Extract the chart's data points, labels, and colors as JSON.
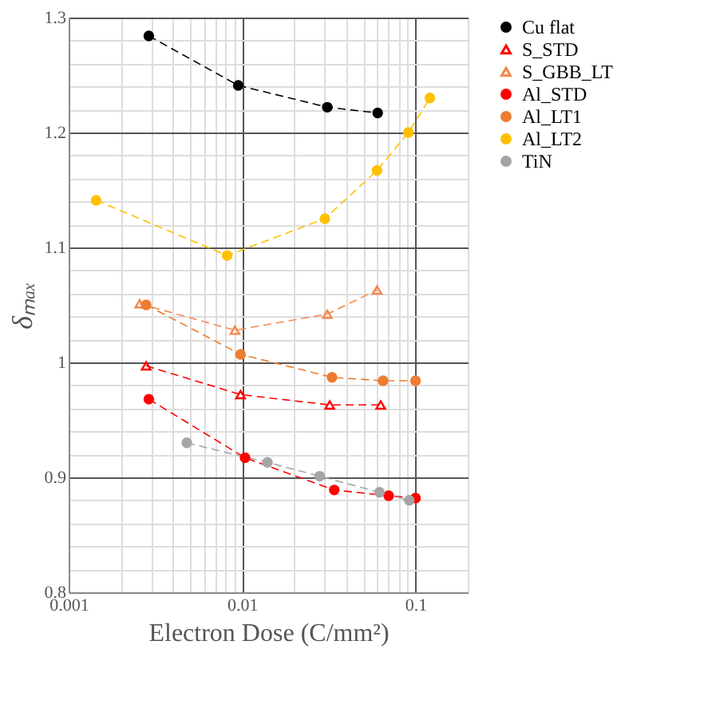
{
  "chart_data": {
    "type": "line",
    "xlabel": "Electron Dose (C/mm²)",
    "ylabel": "δₘₐₓ",
    "line_style": "dashed",
    "log": "x",
    "xlim": [
      0.001,
      0.2
    ],
    "ylim": [
      0.8,
      1.3
    ],
    "xticks": [
      0.001,
      {
        "value": 0.002,
        "label": null
      },
      {
        "value": 0.003,
        "label": null
      },
      {
        "value": 0.004,
        "label": null
      },
      {
        "value": 0.005,
        "label": null
      },
      {
        "value": 0.006,
        "label": null
      },
      {
        "value": 0.007,
        "label": null
      },
      {
        "value": 0.008,
        "label": null
      },
      {
        "value": 0.009,
        "label": null
      },
      0.01,
      {
        "value": 0.02,
        "label": null
      },
      {
        "value": 0.03,
        "label": null
      },
      {
        "value": 0.04,
        "label": null
      },
      {
        "value": 0.05,
        "label": null
      },
      {
        "value": 0.06,
        "label": null
      },
      {
        "value": 0.07,
        "label": null
      },
      {
        "value": 0.08,
        "label": null
      },
      {
        "value": 0.09,
        "label": null
      },
      0.1
    ],
    "yticks": [
      0.8,
      {
        "value": 0.82,
        "label": null
      },
      {
        "value": 0.84,
        "label": null
      },
      {
        "value": 0.86,
        "label": null
      },
      {
        "value": 0.88,
        "label": null
      },
      0.9,
      {
        "value": 0.92,
        "label": null
      },
      {
        "value": 0.94,
        "label": null
      },
      {
        "value": 0.96,
        "label": null
      },
      {
        "value": 0.98,
        "label": null
      },
      1,
      {
        "value": 1.02,
        "label": null
      },
      {
        "value": 1.04,
        "label": null
      },
      {
        "value": 1.06,
        "label": null
      },
      {
        "value": 1.08,
        "label": null
      },
      1.1,
      {
        "value": 1.12,
        "label": null
      },
      {
        "value": 1.14,
        "label": null
      },
      {
        "value": 1.16,
        "label": null
      },
      {
        "value": 1.18,
        "label": null
      },
      1.2,
      {
        "value": 1.22,
        "label": null
      },
      {
        "value": 1.24,
        "label": null
      },
      {
        "value": 1.26,
        "label": null
      },
      {
        "value": 1.28,
        "label": null
      },
      1.3
    ],
    "grid": true,
    "legend": "right",
    "series": [
      {
        "name": "Cu flat",
        "color": "#000000",
        "marker": "circle",
        "x": [
          0.0029,
          0.0095,
          0.031,
          0.0605
        ],
        "values": [
          1.284,
          1.241,
          1.222,
          1.217
        ]
      },
      {
        "name": "S_STD",
        "color": "#ff0000",
        "marker": "triangle",
        "x": [
          0.0028,
          0.0098,
          0.032,
          0.063
        ],
        "values": [
          0.997,
          0.972,
          0.963,
          0.963
        ]
      },
      {
        "name": "S_GBB_LT",
        "color": "#f4874b",
        "marker": "triangle",
        "x": [
          0.00257,
          0.0091,
          0.031,
          0.06
        ],
        "values": [
          1.051,
          1.028,
          1.042,
          1.063
        ]
      },
      {
        "name": "Al_STD",
        "color": "#ff0000",
        "marker": "circle",
        "x": [
          0.0029,
          0.0104,
          0.034,
          0.07,
          0.1
        ],
        "values": [
          0.968,
          0.917,
          0.889,
          0.884,
          0.882
        ]
      },
      {
        "name": "Al_LT1",
        "color": "#ed7d31",
        "marker": "circle",
        "x": [
          0.0028,
          0.0098,
          0.033,
          0.065,
          0.1
        ],
        "values": [
          1.05,
          1.007,
          0.987,
          0.984,
          0.984
        ]
      },
      {
        "name": "Al_LT2",
        "color": "#ffc000",
        "marker": "circle",
        "x": [
          0.00144,
          0.0082,
          0.03,
          0.06,
          0.091,
          0.121
        ],
        "values": [
          1.141,
          1.093,
          1.125,
          1.167,
          1.2,
          1.23
        ]
      },
      {
        "name": "TiN",
        "color": "#a5a5a5",
        "marker": "circle",
        "x": [
          0.0048,
          0.014,
          0.028,
          0.062,
          0.092
        ],
        "values": [
          0.93,
          0.913,
          0.901,
          0.887,
          0.88
        ]
      }
    ]
  }
}
